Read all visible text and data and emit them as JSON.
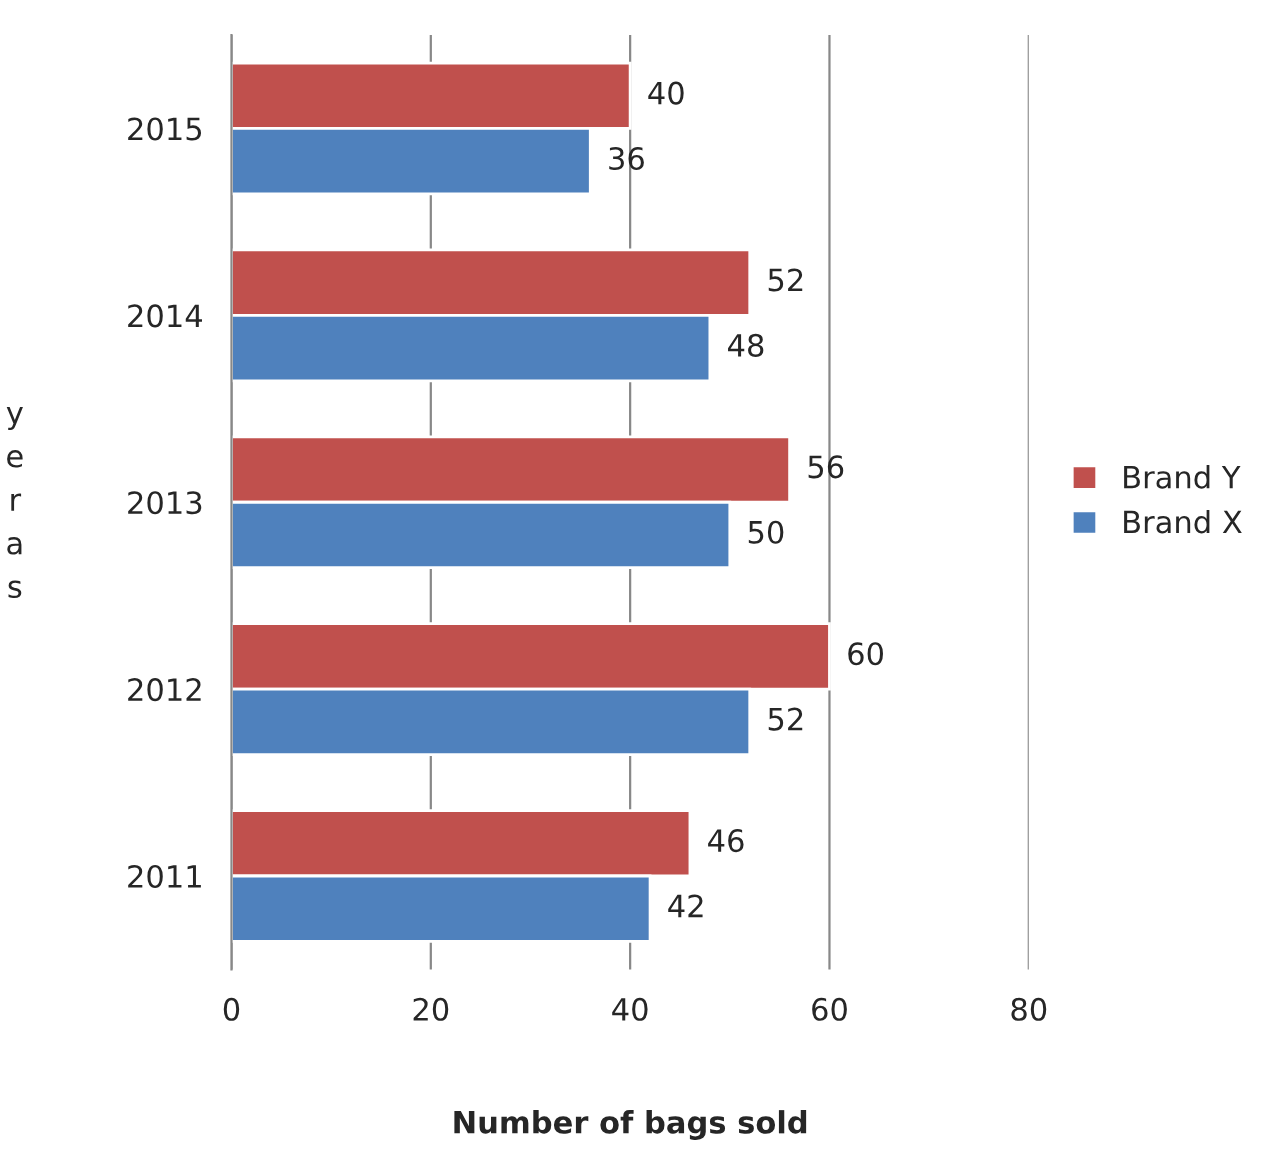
{
  "chart_data": {
    "type": "bar",
    "orientation": "horizontal",
    "xlabel": "Number of bags sold",
    "ylabel": "yeras",
    "categories": [
      "2015",
      "2014",
      "2013",
      "2012",
      "2011"
    ],
    "series": [
      {
        "name": "Brand Y",
        "color": "#c0504d",
        "values": [
          40,
          52,
          56,
          60,
          46
        ]
      },
      {
        "name": "Brand X",
        "color": "#4f81bd",
        "values": [
          36,
          48,
          50,
          52,
          42
        ]
      }
    ],
    "xlim": [
      0,
      80
    ],
    "xticks": [
      0,
      20,
      40,
      60,
      80
    ],
    "grid": "x",
    "legend": "right",
    "data_labels": true
  }
}
